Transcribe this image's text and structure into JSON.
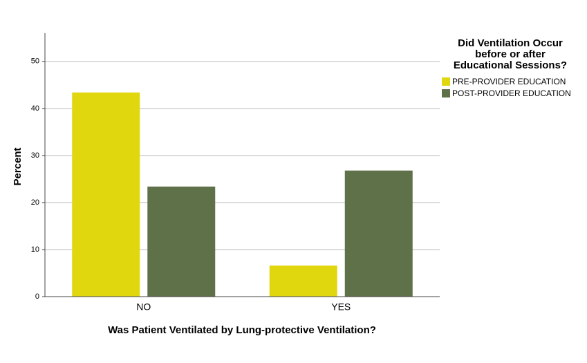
{
  "chart_data": {
    "type": "bar",
    "x_label": "Was Patient Ventilated by Lung-protective Ventilation?",
    "y_label": "Percent",
    "legend_title": "Did Ventilation Occur before or after Educational Sessions?",
    "categories": [
      "NO",
      "YES"
    ],
    "series": [
      {
        "name": "PRE-PROVIDER EDUCATION",
        "color": "#e1d70f",
        "values": [
          43.4,
          6.6
        ]
      },
      {
        "name": "POST-PROVIDER EDUCATION",
        "color": "#5f7149",
        "values": [
          23.4,
          26.8
        ]
      }
    ],
    "ylim": [
      0,
      56
    ],
    "yticks": [
      0,
      10,
      20,
      30,
      40,
      50
    ],
    "grid": true,
    "legend": "right"
  }
}
